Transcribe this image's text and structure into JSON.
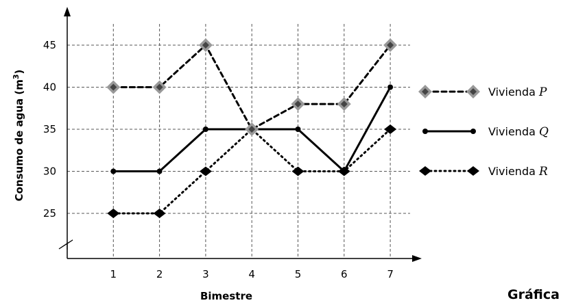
{
  "chart_data": {
    "type": "line",
    "title": "",
    "xlabel": "Bimestre",
    "ylabel_main": "Consumo de agua (m",
    "ylabel_sup": "3",
    "ylabel_close": ")",
    "x": [
      1,
      2,
      3,
      4,
      5,
      6,
      7
    ],
    "x_ticks": [
      "1",
      "2",
      "3",
      "4",
      "5",
      "6",
      "7"
    ],
    "y_ticks": [
      "25",
      "30",
      "35",
      "40",
      "45"
    ],
    "y_tick_values": [
      25,
      30,
      35,
      40,
      45
    ],
    "ylim": [
      20,
      48
    ],
    "xlim": [
      0,
      7.6
    ],
    "axis_break": true,
    "grid": "dashed",
    "legend_position": "right",
    "series": [
      {
        "name_prefix": "Vivienda ",
        "name_var": "P",
        "values": [
          40,
          40,
          45,
          35,
          38,
          38,
          45
        ],
        "style": "dashed",
        "marker": "diamond-gray"
      },
      {
        "name_prefix": "Vivienda ",
        "name_var": "Q",
        "values": [
          30,
          30,
          35,
          35,
          35,
          30,
          40
        ],
        "style": "solid",
        "marker": "dot"
      },
      {
        "name_prefix": "Vivienda ",
        "name_var": "R",
        "values": [
          25,
          25,
          30,
          35,
          30,
          30,
          35
        ],
        "style": "dotted",
        "marker": "diamond-black"
      }
    ],
    "colors": {
      "line": "#000000",
      "p_marker_fill": "#444444",
      "p_marker_stroke": "#999999"
    }
  },
  "caption": "Gráfica"
}
